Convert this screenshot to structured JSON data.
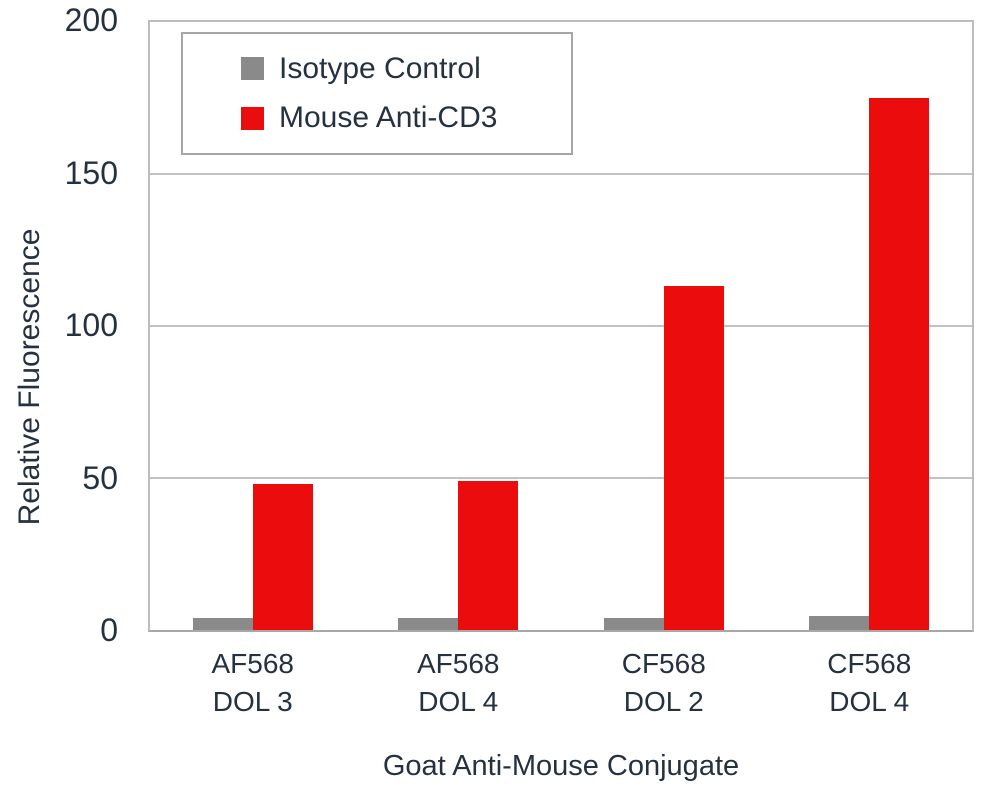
{
  "chart_data": {
    "type": "bar",
    "title": "",
    "xlabel": "Goat Anti-Mouse Conjugate",
    "ylabel": "Relative Fluorescence",
    "ylim": [
      0,
      200
    ],
    "yticks": [
      0,
      50,
      100,
      150,
      200
    ],
    "grid": "horizontal",
    "legend_position": "top-left-inside",
    "categories": [
      [
        "AF568",
        "DOL 3"
      ],
      [
        "AF568",
        "DOL 4"
      ],
      [
        "CF568",
        "DOL 2"
      ],
      [
        "CF568",
        "DOL 4"
      ]
    ],
    "series": [
      {
        "name": "Isotype Control",
        "color": "#8A8A8A",
        "values": [
          4,
          4,
          4,
          4.5
        ]
      },
      {
        "name": "Mouse Anti-CD3",
        "color": "#EB0D0D",
        "values": [
          48,
          49,
          113,
          175
        ]
      }
    ]
  },
  "colors": {
    "text": "#253141",
    "gridline": "#C2C2C2",
    "plot_border": "#BDBDBD",
    "axis_line": "#A8A8A8",
    "legend_border": "#A6A6A6",
    "background": "#FFFFFF"
  }
}
